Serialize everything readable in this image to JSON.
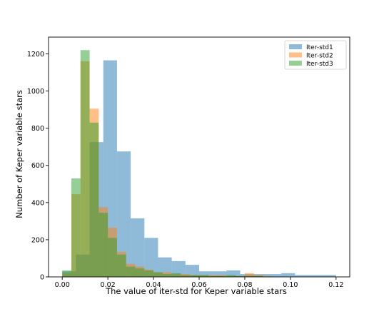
{
  "chart_data": {
    "type": "bar",
    "subtype": "overlaid-histogram",
    "title": "",
    "xlabel": "The value of iter-std for Keper variable stars",
    "ylabel": "Number of Keper variable stars",
    "xlim": [
      -0.006,
      0.126
    ],
    "ylim": [
      0,
      1290
    ],
    "xticks": [
      0.0,
      0.02,
      0.04,
      0.06,
      0.08,
      0.1,
      0.12
    ],
    "xtick_labels": [
      "0.00",
      "0.02",
      "0.04",
      "0.06",
      "0.08",
      "0.10",
      "0.12"
    ],
    "yticks": [
      0,
      200,
      400,
      600,
      800,
      1000,
      1200
    ],
    "ytick_labels": [
      "0",
      "200",
      "400",
      "600",
      "800",
      "1000",
      "1200"
    ],
    "grid": false,
    "legend_position": "top-right",
    "series": [
      {
        "name": "Iter-std1",
        "color": "#1f77b4",
        "alpha": 0.5,
        "bin_edges": [
          0.0,
          0.006,
          0.012,
          0.018,
          0.024,
          0.03,
          0.036,
          0.042,
          0.048,
          0.054,
          0.06,
          0.066,
          0.072,
          0.078,
          0.084,
          0.09,
          0.096,
          0.102,
          0.108,
          0.114,
          0.12
        ],
        "counts": [
          30,
          120,
          725,
          1165,
          675,
          315,
          210,
          105,
          85,
          65,
          30,
          30,
          35,
          15,
          15,
          15,
          20,
          10,
          10,
          10
        ]
      },
      {
        "name": "Iter-std2",
        "color": "#ff7f0e",
        "alpha": 0.5,
        "bin_edges": [
          0.0,
          0.004,
          0.008,
          0.012,
          0.016,
          0.02,
          0.024,
          0.028,
          0.032,
          0.036,
          0.04,
          0.044,
          0.048,
          0.052,
          0.056,
          0.06,
          0.064,
          0.068,
          0.072,
          0.076,
          0.08,
          0.084,
          0.088,
          0.092
        ],
        "counts": [
          20,
          445,
          1160,
          905,
          375,
          265,
          135,
          70,
          55,
          40,
          25,
          25,
          15,
          15,
          10,
          10,
          10,
          10,
          5,
          5,
          20,
          10,
          5
        ]
      },
      {
        "name": "Iter-std3",
        "color": "#2ca02c",
        "alpha": 0.5,
        "bin_edges": [
          0.0,
          0.004,
          0.008,
          0.012,
          0.016,
          0.02,
          0.024,
          0.028,
          0.032,
          0.036,
          0.04,
          0.044,
          0.048,
          0.052,
          0.056,
          0.06,
          0.064,
          0.068,
          0.072,
          0.076,
          0.08,
          0.084,
          0.088
        ],
        "counts": [
          35,
          530,
          1220,
          830,
          345,
          210,
          120,
          55,
          45,
          35,
          25,
          15,
          20,
          10,
          10,
          10,
          5,
          5,
          10,
          5,
          5,
          5
        ]
      }
    ]
  }
}
